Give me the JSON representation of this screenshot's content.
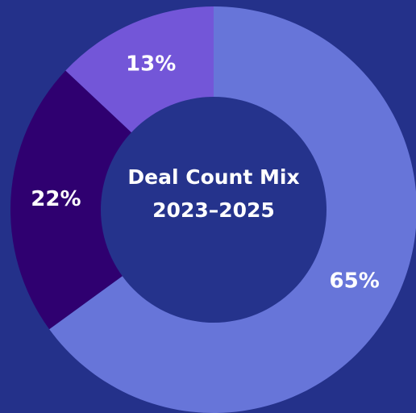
{
  "chart_data": {
    "type": "donut",
    "title": "Deal Count Mix",
    "subtitle": "2023–2025",
    "values": [
      65,
      22,
      13
    ],
    "value_labels": [
      "65%",
      "22%",
      "13%"
    ],
    "colors": [
      "#6775d9",
      "#2f0070",
      "#7356d8"
    ],
    "center_color": "#25338c"
  }
}
